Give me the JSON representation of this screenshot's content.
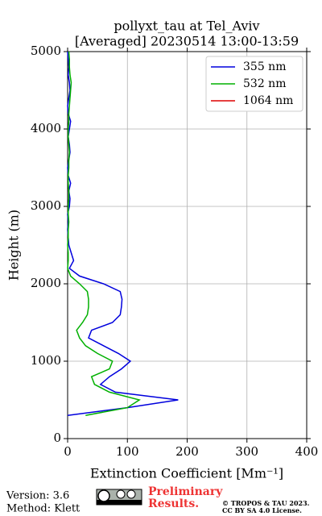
{
  "chart_data": {
    "type": "line",
    "title": "pollyxt_tau at Tel_Aviv",
    "subtitle": "[Averaged] 20230514 13:00-13:59",
    "xlabel": "Extinction Coefficient [Mm⁻¹]",
    "ylabel": "Height (m)",
    "xlim": [
      0,
      400
    ],
    "xticks": [
      0,
      100,
      200,
      300,
      400
    ],
    "ylim": [
      0,
      5000
    ],
    "yticks": [
      0,
      1000,
      2000,
      3000,
      4000,
      5000
    ],
    "grid": true,
    "legend": "upper right",
    "y": [
      200,
      300,
      400,
      500,
      600,
      700,
      800,
      900,
      1000,
      1100,
      1200,
      1300,
      1400,
      1500,
      1600,
      1700,
      1800,
      1900,
      2000,
      2100,
      2200,
      2300,
      2400,
      2500,
      2600,
      2700,
      2800,
      2900,
      3000,
      3100,
      3200,
      3300,
      3400,
      3500,
      3600,
      3700,
      3800,
      3900,
      4000,
      4100,
      4200,
      4300,
      4400,
      4500,
      4600,
      4700,
      4800,
      4900,
      5000
    ],
    "series": [
      {
        "name": "355 nm",
        "color": "#0000dd",
        "values": [
          null,
          0,
          100,
          185,
          80,
          55,
          70,
          90,
          105,
          85,
          60,
          35,
          40,
          75,
          88,
          90,
          91,
          88,
          60,
          20,
          3,
          10,
          6,
          2,
          1,
          0,
          1,
          0,
          3,
          4,
          2,
          5,
          1,
          0,
          2,
          4,
          3,
          1,
          3,
          5,
          1,
          0,
          2,
          4,
          3,
          1,
          2,
          1,
          0
        ]
      },
      {
        "name": "532 nm",
        "color": "#00b000",
        "values": [
          null,
          30,
          100,
          120,
          70,
          45,
          40,
          70,
          75,
          50,
          30,
          20,
          15,
          25,
          33,
          35,
          35,
          33,
          20,
          5,
          0,
          1,
          1,
          0,
          1,
          1,
          2,
          1,
          1,
          2,
          2,
          1,
          1,
          2,
          2,
          3,
          2,
          1,
          1,
          2,
          2,
          3,
          4,
          5,
          6,
          4,
          3,
          3,
          2
        ]
      },
      {
        "name": "1064 nm",
        "color": "#dd0000",
        "values": [
          null,
          null,
          null,
          null,
          null,
          null,
          null,
          null,
          null,
          null,
          null,
          null,
          null,
          null,
          null,
          null,
          null,
          null,
          null,
          null,
          null,
          null,
          null,
          null,
          null,
          null,
          null,
          null,
          null,
          null,
          null,
          null,
          null,
          null,
          null,
          null,
          null,
          null,
          null,
          null,
          null,
          null,
          null,
          null,
          null,
          null,
          null,
          null,
          null
        ]
      }
    ]
  },
  "footer": {
    "version": "Version: 3.6",
    "method": "Method: Klett",
    "preliminary": [
      "Preliminary",
      "Results."
    ],
    "copyright": "© TROPOS & TAU 2023.",
    "license": "CC BY SA 4.0 License."
  }
}
